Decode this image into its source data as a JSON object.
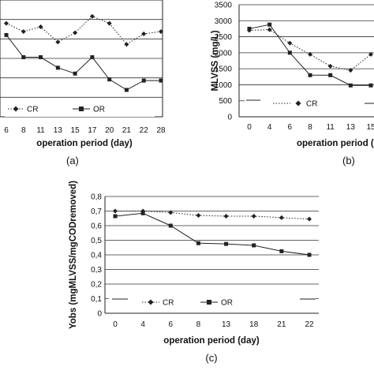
{
  "chart_data": [
    {
      "panel_label": "(a)",
      "type": "line",
      "xlabel": "operation period (day)",
      "ylabel": "",
      "categories": [
        "6",
        "8",
        "11",
        "13",
        "15",
        "17",
        "20",
        "21",
        "22",
        "28"
      ],
      "ylim": [
        0,
        1
      ],
      "grid": true,
      "legend_position": "bottom",
      "series": [
        {
          "name": "CR",
          "style": "dotted",
          "marker": "diamond",
          "color": "#222222",
          "values": [
            0.8,
            0.73,
            0.77,
            0.64,
            0.72,
            0.86,
            0.8,
            0.62,
            0.71,
            0.73
          ]
        },
        {
          "name": "OR",
          "style": "solid",
          "marker": "square",
          "color": "#222222",
          "values": [
            0.7,
            0.51,
            0.51,
            0.42,
            0.37,
            0.51,
            0.32,
            0.23,
            0.31,
            0.31
          ]
        }
      ]
    },
    {
      "panel_label": "(b)",
      "type": "line",
      "xlabel": "operation period (day)",
      "ylabel": "MLVSS (mg/L)",
      "categories": [
        "0",
        "4",
        "6",
        "8",
        "11",
        "13",
        "15"
      ],
      "yticks": [
        "0",
        "500",
        "1000",
        "1500",
        "2000",
        "2500",
        "3000",
        "3500"
      ],
      "ylim": [
        0,
        3500
      ],
      "grid": true,
      "legend_position": "bottom",
      "series": [
        {
          "name": "CR",
          "style": "dotted",
          "marker": "diamond",
          "color": "#222222",
          "values": [
            2700,
            2720,
            2300,
            1950,
            1580,
            1450,
            1950
          ]
        },
        {
          "name": "OR",
          "style": "solid",
          "marker": "square",
          "color": "#222222",
          "values": [
            2750,
            2880,
            2000,
            1300,
            1300,
            980,
            980
          ]
        }
      ]
    },
    {
      "panel_label": "(c)",
      "type": "line",
      "xlabel": "operation period (day)",
      "ylabel": "Yobs (mgMLVSS/mgCODremoved)",
      "categories": [
        "0",
        "4",
        "6",
        "8",
        "13",
        "18",
        "21",
        "22"
      ],
      "yticks": [
        "0",
        "0,1",
        "0,2",
        "0,3",
        "0,4",
        "0,5",
        "0,6",
        "0,7",
        "0,8"
      ],
      "ylim": [
        0,
        0.8
      ],
      "grid": true,
      "legend_position": "bottom",
      "series": [
        {
          "name": "CR",
          "style": "dotted",
          "marker": "diamond",
          "color": "#222222",
          "values": [
            0.7,
            0.7,
            0.69,
            0.67,
            0.665,
            0.665,
            0.655,
            0.645
          ]
        },
        {
          "name": "OR",
          "style": "solid",
          "marker": "square",
          "color": "#222222",
          "values": [
            0.665,
            0.685,
            0.6,
            0.48,
            0.475,
            0.465,
            0.425,
            0.4
          ]
        }
      ]
    }
  ]
}
